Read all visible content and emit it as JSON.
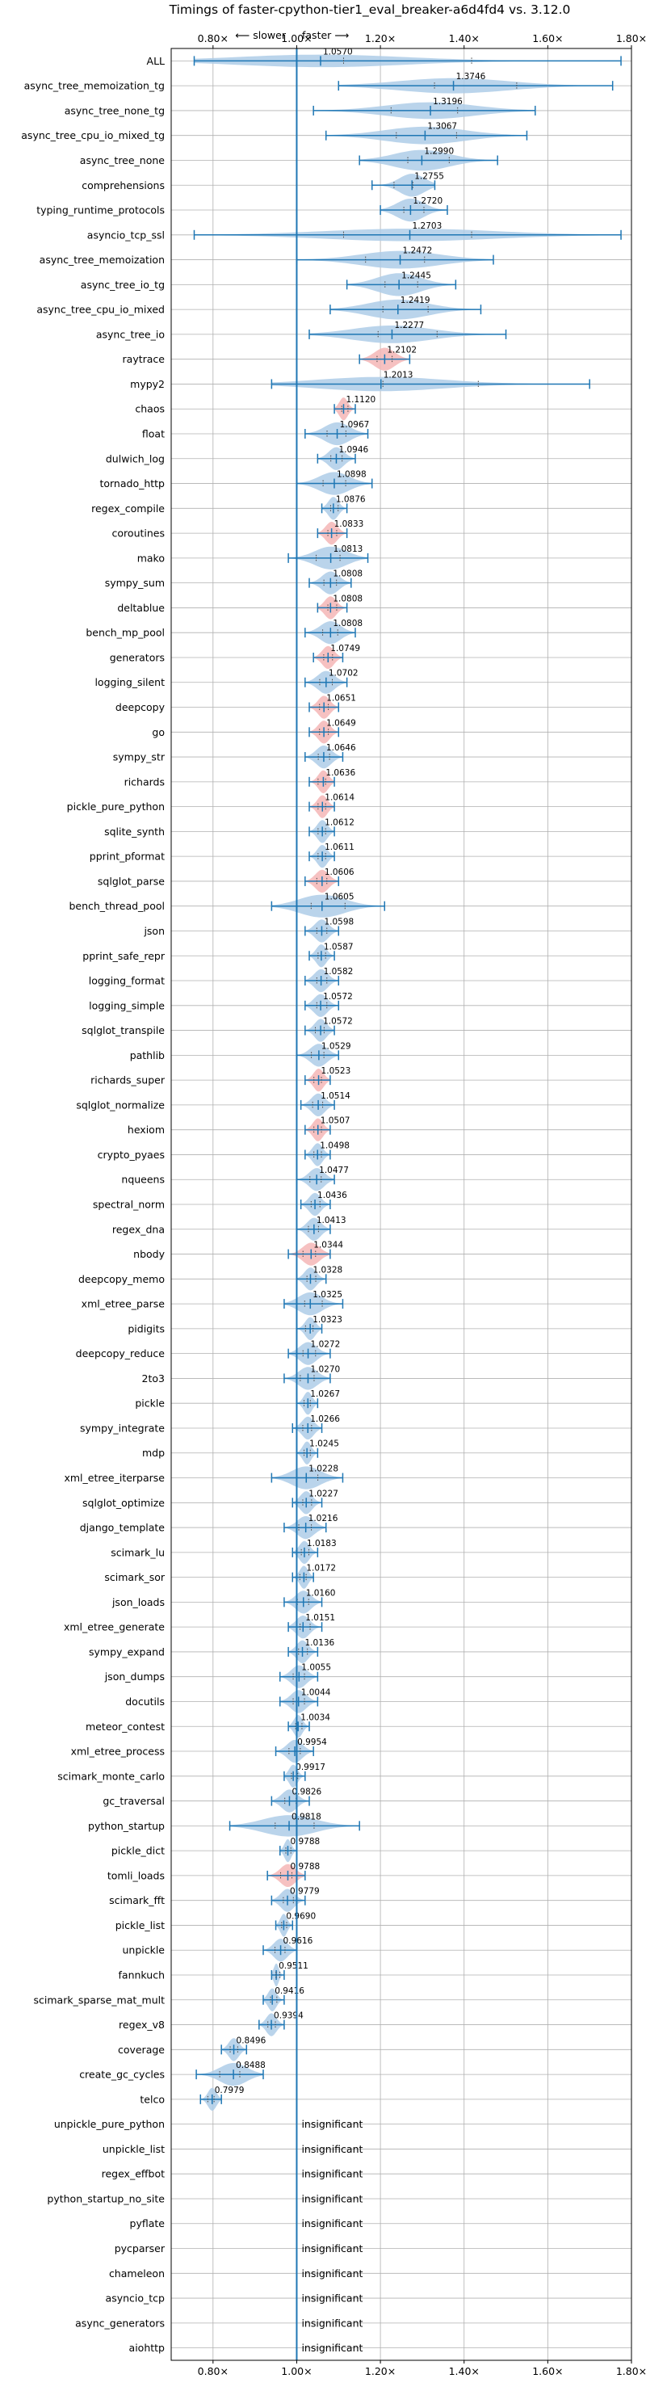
{
  "chart_data": {
    "type": "violin",
    "title": "Timings of faster-cpython-tier1_eval_breaker-a6d4fd4 vs. 3.12.0",
    "direction_left": "⟵ slower",
    "direction_right": "faster ⟶",
    "xlim": [
      0.7,
      1.8
    ],
    "xticks": [
      0.8,
      1.0,
      1.2,
      1.4,
      1.6,
      1.8
    ],
    "xtick_labels": [
      "0.80×",
      "1.00×",
      "1.20×",
      "1.40×",
      "1.60×",
      "1.80×"
    ],
    "reference_x": 1.0,
    "colors": {
      "violin": "#aecde8",
      "violin_highlight": "#f4b6b6",
      "line": "#1f77b4"
    },
    "insignificant_label": "insignificant",
    "benchmarks": [
      {
        "name": "ALL",
        "mean": 1.057,
        "label": "1.0570",
        "min": 0.755,
        "max": 1.775,
        "hl": false
      },
      {
        "name": "async_tree_memoization_tg",
        "mean": 1.3746,
        "label": "1.3746",
        "min": 1.1,
        "max": 1.755,
        "hl": false
      },
      {
        "name": "async_tree_none_tg",
        "mean": 1.3196,
        "label": "1.3196",
        "min": 1.04,
        "max": 1.57,
        "hl": false
      },
      {
        "name": "async_tree_cpu_io_mixed_tg",
        "mean": 1.3067,
        "label": "1.3067",
        "min": 1.07,
        "max": 1.55,
        "hl": false
      },
      {
        "name": "async_tree_none",
        "mean": 1.299,
        "label": "1.2990",
        "min": 1.15,
        "max": 1.48,
        "hl": false
      },
      {
        "name": "comprehensions",
        "mean": 1.2755,
        "label": "1.2755",
        "min": 1.18,
        "max": 1.33,
        "hl": false
      },
      {
        "name": "typing_runtime_protocols",
        "mean": 1.272,
        "label": "1.2720",
        "min": 1.2,
        "max": 1.36,
        "hl": false
      },
      {
        "name": "asyncio_tcp_ssl",
        "mean": 1.2703,
        "label": "1.2703",
        "min": 0.755,
        "max": 1.775,
        "hl": false
      },
      {
        "name": "async_tree_memoization",
        "mean": 1.2472,
        "label": "1.2472",
        "min": 1.0,
        "max": 1.47,
        "hl": false
      },
      {
        "name": "async_tree_io_tg",
        "mean": 1.2445,
        "label": "1.2445",
        "min": 1.12,
        "max": 1.38,
        "hl": false
      },
      {
        "name": "async_tree_cpu_io_mixed",
        "mean": 1.2419,
        "label": "1.2419",
        "min": 1.08,
        "max": 1.44,
        "hl": false
      },
      {
        "name": "async_tree_io",
        "mean": 1.2277,
        "label": "1.2277",
        "min": 1.03,
        "max": 1.5,
        "hl": false
      },
      {
        "name": "raytrace",
        "mean": 1.2102,
        "label": "1.2102",
        "min": 1.15,
        "max": 1.27,
        "hl": true
      },
      {
        "name": "mypy2",
        "mean": 1.2013,
        "label": "1.2013",
        "min": 0.94,
        "max": 1.7,
        "hl": false
      },
      {
        "name": "chaos",
        "mean": 1.112,
        "label": "1.1120",
        "min": 1.09,
        "max": 1.14,
        "hl": true
      },
      {
        "name": "float",
        "mean": 1.0967,
        "label": "1.0967",
        "min": 1.02,
        "max": 1.17,
        "hl": false
      },
      {
        "name": "dulwich_log",
        "mean": 1.0946,
        "label": "1.0946",
        "min": 1.05,
        "max": 1.14,
        "hl": false
      },
      {
        "name": "tornado_http",
        "mean": 1.0898,
        "label": "1.0898",
        "min": 1.0,
        "max": 1.18,
        "hl": false
      },
      {
        "name": "regex_compile",
        "mean": 1.0876,
        "label": "1.0876",
        "min": 1.06,
        "max": 1.12,
        "hl": false
      },
      {
        "name": "coroutines",
        "mean": 1.0833,
        "label": "1.0833",
        "min": 1.05,
        "max": 1.12,
        "hl": true
      },
      {
        "name": "mako",
        "mean": 1.0813,
        "label": "1.0813",
        "min": 0.98,
        "max": 1.17,
        "hl": false
      },
      {
        "name": "sympy_sum",
        "mean": 1.0808,
        "label": "1.0808",
        "min": 1.03,
        "max": 1.13,
        "hl": false
      },
      {
        "name": "deltablue",
        "mean": 1.0808,
        "label": "1.0808",
        "min": 1.05,
        "max": 1.12,
        "hl": true
      },
      {
        "name": "bench_mp_pool",
        "mean": 1.0808,
        "label": "1.0808",
        "min": 1.02,
        "max": 1.14,
        "hl": false
      },
      {
        "name": "generators",
        "mean": 1.0749,
        "label": "1.0749",
        "min": 1.04,
        "max": 1.11,
        "hl": true
      },
      {
        "name": "logging_silent",
        "mean": 1.0702,
        "label": "1.0702",
        "min": 1.02,
        "max": 1.12,
        "hl": false
      },
      {
        "name": "deepcopy",
        "mean": 1.0651,
        "label": "1.0651",
        "min": 1.03,
        "max": 1.1,
        "hl": true
      },
      {
        "name": "go",
        "mean": 1.0649,
        "label": "1.0649",
        "min": 1.03,
        "max": 1.1,
        "hl": true
      },
      {
        "name": "sympy_str",
        "mean": 1.0646,
        "label": "1.0646",
        "min": 1.02,
        "max": 1.11,
        "hl": false
      },
      {
        "name": "richards",
        "mean": 1.0636,
        "label": "1.0636",
        "min": 1.03,
        "max": 1.09,
        "hl": true
      },
      {
        "name": "pickle_pure_python",
        "mean": 1.0614,
        "label": "1.0614",
        "min": 1.03,
        "max": 1.09,
        "hl": true
      },
      {
        "name": "sqlite_synth",
        "mean": 1.0612,
        "label": "1.0612",
        "min": 1.03,
        "max": 1.09,
        "hl": false
      },
      {
        "name": "pprint_pformat",
        "mean": 1.0611,
        "label": "1.0611",
        "min": 1.03,
        "max": 1.09,
        "hl": false
      },
      {
        "name": "sqlglot_parse",
        "mean": 1.0606,
        "label": "1.0606",
        "min": 1.02,
        "max": 1.1,
        "hl": true
      },
      {
        "name": "bench_thread_pool",
        "mean": 1.0605,
        "label": "1.0605",
        "min": 0.94,
        "max": 1.21,
        "hl": false
      },
      {
        "name": "json",
        "mean": 1.0598,
        "label": "1.0598",
        "min": 1.02,
        "max": 1.1,
        "hl": false
      },
      {
        "name": "pprint_safe_repr",
        "mean": 1.0587,
        "label": "1.0587",
        "min": 1.03,
        "max": 1.09,
        "hl": false
      },
      {
        "name": "logging_format",
        "mean": 1.0582,
        "label": "1.0582",
        "min": 1.02,
        "max": 1.1,
        "hl": false
      },
      {
        "name": "logging_simple",
        "mean": 1.0572,
        "label": "1.0572",
        "min": 1.02,
        "max": 1.1,
        "hl": false
      },
      {
        "name": "sqlglot_transpile",
        "mean": 1.0572,
        "label": "1.0572",
        "min": 1.02,
        "max": 1.09,
        "hl": false
      },
      {
        "name": "pathlib",
        "mean": 1.0529,
        "label": "1.0529",
        "min": 1.0,
        "max": 1.1,
        "hl": false
      },
      {
        "name": "richards_super",
        "mean": 1.0523,
        "label": "1.0523",
        "min": 1.02,
        "max": 1.08,
        "hl": true
      },
      {
        "name": "sqlglot_normalize",
        "mean": 1.0514,
        "label": "1.0514",
        "min": 1.01,
        "max": 1.09,
        "hl": false
      },
      {
        "name": "hexiom",
        "mean": 1.0507,
        "label": "1.0507",
        "min": 1.02,
        "max": 1.08,
        "hl": true
      },
      {
        "name": "crypto_pyaes",
        "mean": 1.0498,
        "label": "1.0498",
        "min": 1.02,
        "max": 1.08,
        "hl": false
      },
      {
        "name": "nqueens",
        "mean": 1.0477,
        "label": "1.0477",
        "min": 1.0,
        "max": 1.09,
        "hl": false
      },
      {
        "name": "spectral_norm",
        "mean": 1.0436,
        "label": "1.0436",
        "min": 1.01,
        "max": 1.08,
        "hl": false
      },
      {
        "name": "regex_dna",
        "mean": 1.0413,
        "label": "1.0413",
        "min": 1.0,
        "max": 1.08,
        "hl": false
      },
      {
        "name": "nbody",
        "mean": 1.0344,
        "label": "1.0344",
        "min": 0.98,
        "max": 1.08,
        "hl": true
      },
      {
        "name": "deepcopy_memo",
        "mean": 1.0328,
        "label": "1.0328",
        "min": 1.0,
        "max": 1.07,
        "hl": false
      },
      {
        "name": "xml_etree_parse",
        "mean": 1.0325,
        "label": "1.0325",
        "min": 0.97,
        "max": 1.11,
        "hl": false
      },
      {
        "name": "pidigits",
        "mean": 1.0323,
        "label": "1.0323",
        "min": 1.0,
        "max": 1.06,
        "hl": false
      },
      {
        "name": "deepcopy_reduce",
        "mean": 1.0272,
        "label": "1.0272",
        "min": 0.98,
        "max": 1.08,
        "hl": false
      },
      {
        "name": "2to3",
        "mean": 1.027,
        "label": "1.0270",
        "min": 0.97,
        "max": 1.08,
        "hl": false
      },
      {
        "name": "pickle",
        "mean": 1.0267,
        "label": "1.0267",
        "min": 1.0,
        "max": 1.05,
        "hl": false
      },
      {
        "name": "sympy_integrate",
        "mean": 1.0266,
        "label": "1.0266",
        "min": 0.99,
        "max": 1.06,
        "hl": false
      },
      {
        "name": "mdp",
        "mean": 1.0245,
        "label": "1.0245",
        "min": 1.0,
        "max": 1.05,
        "hl": false
      },
      {
        "name": "xml_etree_iterparse",
        "mean": 1.0228,
        "label": "1.0228",
        "min": 0.94,
        "max": 1.11,
        "hl": false
      },
      {
        "name": "sqlglot_optimize",
        "mean": 1.0227,
        "label": "1.0227",
        "min": 0.99,
        "max": 1.06,
        "hl": false
      },
      {
        "name": "django_template",
        "mean": 1.0216,
        "label": "1.0216",
        "min": 0.97,
        "max": 1.07,
        "hl": false
      },
      {
        "name": "scimark_lu",
        "mean": 1.0183,
        "label": "1.0183",
        "min": 0.99,
        "max": 1.05,
        "hl": false
      },
      {
        "name": "scimark_sor",
        "mean": 1.0172,
        "label": "1.0172",
        "min": 0.99,
        "max": 1.04,
        "hl": false
      },
      {
        "name": "json_loads",
        "mean": 1.016,
        "label": "1.0160",
        "min": 0.97,
        "max": 1.06,
        "hl": false
      },
      {
        "name": "xml_etree_generate",
        "mean": 1.0151,
        "label": "1.0151",
        "min": 0.98,
        "max": 1.06,
        "hl": false
      },
      {
        "name": "sympy_expand",
        "mean": 1.0136,
        "label": "1.0136",
        "min": 0.98,
        "max": 1.05,
        "hl": false
      },
      {
        "name": "json_dumps",
        "mean": 1.0055,
        "label": "1.0055",
        "min": 0.96,
        "max": 1.05,
        "hl": false
      },
      {
        "name": "docutils",
        "mean": 1.0044,
        "label": "1.0044",
        "min": 0.96,
        "max": 1.05,
        "hl": false
      },
      {
        "name": "meteor_contest",
        "mean": 1.0034,
        "label": "1.0034",
        "min": 0.98,
        "max": 1.03,
        "hl": false
      },
      {
        "name": "xml_etree_process",
        "mean": 0.9954,
        "label": "0.9954",
        "min": 0.95,
        "max": 1.04,
        "hl": false
      },
      {
        "name": "scimark_monte_carlo",
        "mean": 0.9917,
        "label": "0.9917",
        "min": 0.97,
        "max": 1.02,
        "hl": false
      },
      {
        "name": "gc_traversal",
        "mean": 0.9826,
        "label": "0.9826",
        "min": 0.94,
        "max": 1.03,
        "hl": false
      },
      {
        "name": "python_startup",
        "mean": 0.9818,
        "label": "0.9818",
        "min": 0.84,
        "max": 1.15,
        "hl": false
      },
      {
        "name": "pickle_dict",
        "mean": 0.9788,
        "label": "0.9788",
        "min": 0.96,
        "max": 1.0,
        "hl": false
      },
      {
        "name": "tomli_loads",
        "mean": 0.9788,
        "label": "0.9788",
        "min": 0.93,
        "max": 1.02,
        "hl": true
      },
      {
        "name": "scimark_fft",
        "mean": 0.9779,
        "label": "0.9779",
        "min": 0.94,
        "max": 1.02,
        "hl": false
      },
      {
        "name": "pickle_list",
        "mean": 0.969,
        "label": "0.9690",
        "min": 0.95,
        "max": 0.99,
        "hl": false
      },
      {
        "name": "unpickle",
        "mean": 0.9616,
        "label": "0.9616",
        "min": 0.92,
        "max": 1.0,
        "hl": false
      },
      {
        "name": "fannkuch",
        "mean": 0.9511,
        "label": "0.9511",
        "min": 0.94,
        "max": 0.97,
        "hl": false
      },
      {
        "name": "scimark_sparse_mat_mult",
        "mean": 0.9416,
        "label": "0.9416",
        "min": 0.92,
        "max": 0.97,
        "hl": false
      },
      {
        "name": "regex_v8",
        "mean": 0.9394,
        "label": "0.9394",
        "min": 0.91,
        "max": 0.97,
        "hl": false
      },
      {
        "name": "coverage",
        "mean": 0.8496,
        "label": "0.8496",
        "min": 0.82,
        "max": 0.88,
        "hl": false
      },
      {
        "name": "create_gc_cycles",
        "mean": 0.8488,
        "label": "0.8488",
        "min": 0.76,
        "max": 0.92,
        "hl": false
      },
      {
        "name": "telco",
        "mean": 0.7979,
        "label": "0.7979",
        "min": 0.77,
        "max": 0.82,
        "hl": false
      },
      {
        "name": "unpickle_pure_python",
        "insignificant": true
      },
      {
        "name": "unpickle_list",
        "insignificant": true
      },
      {
        "name": "regex_effbot",
        "insignificant": true
      },
      {
        "name": "python_startup_no_site",
        "insignificant": true
      },
      {
        "name": "pyflate",
        "insignificant": true
      },
      {
        "name": "pycparser",
        "insignificant": true
      },
      {
        "name": "chameleon",
        "insignificant": true
      },
      {
        "name": "asyncio_tcp",
        "insignificant": true
      },
      {
        "name": "async_generators",
        "insignificant": true
      },
      {
        "name": "aiohttp",
        "insignificant": true
      }
    ]
  }
}
